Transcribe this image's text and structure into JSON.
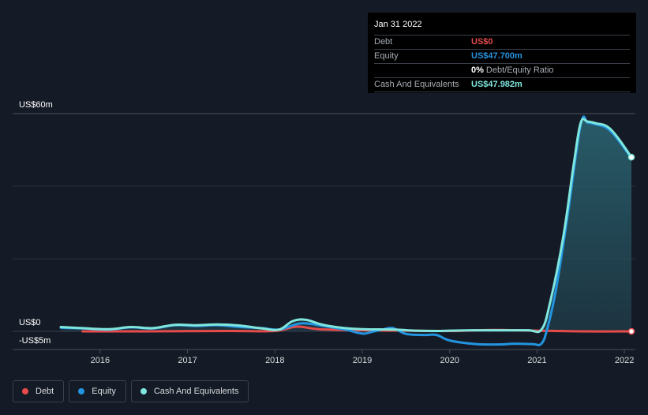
{
  "chart_data": {
    "type": "area",
    "x_ticks": [
      "2016",
      "2017",
      "2018",
      "2019",
      "2020",
      "2021",
      "2022"
    ],
    "y_labels": [
      "US$60m",
      "US$0",
      "-US$5m"
    ],
    "ylim": [
      -5,
      60
    ],
    "series": [
      {
        "name": "Debt",
        "color": "#e64b4b",
        "x": [
          2015.8,
          2016.5,
          2017.5,
          2018.0,
          2018.25,
          2018.5,
          2019.0,
          2019.5,
          2020.0,
          2020.5,
          2021.0,
          2021.5,
          2022.08
        ],
        "values": [
          0.0,
          0.0,
          0.1,
          0.1,
          1.3,
          0.6,
          0.3,
          0.2,
          0.1,
          0.4,
          0.2,
          0.0,
          0.0
        ]
      },
      {
        "name": "Equity",
        "color": "#2394df",
        "x": [
          2015.55,
          2015.8,
          2016.1,
          2016.35,
          2016.6,
          2016.85,
          2017.1,
          2017.35,
          2017.6,
          2017.85,
          2018.05,
          2018.3,
          2018.55,
          2018.8,
          2019.0,
          2019.1,
          2019.25,
          2019.35,
          2019.5,
          2019.7,
          2019.85,
          2020.0,
          2020.3,
          2020.55,
          2020.75,
          2020.95,
          2021.05,
          2021.12,
          2021.22,
          2021.35,
          2021.5,
          2021.58,
          2021.68,
          2021.8,
          2021.92,
          2022.08
        ],
        "values": [
          1.0,
          0.8,
          0.5,
          1.1,
          0.8,
          1.7,
          1.5,
          1.7,
          1.2,
          0.9,
          0.5,
          2.2,
          1.5,
          0.5,
          -0.6,
          -0.2,
          0.6,
          0.9,
          -0.7,
          -1.0,
          -1.0,
          -2.5,
          -3.5,
          -3.6,
          -3.4,
          -3.5,
          -3.4,
          1.0,
          12.0,
          32.0,
          57.0,
          57.5,
          57.0,
          56.0,
          53.0,
          47.7
        ]
      },
      {
        "name": "Cash And Equivalents",
        "color": "#7fe6de",
        "x": [
          2015.55,
          2015.8,
          2016.1,
          2016.35,
          2016.6,
          2016.85,
          2017.1,
          2017.35,
          2017.6,
          2017.85,
          2018.05,
          2018.2,
          2018.35,
          2018.55,
          2018.8,
          2019.0,
          2019.35,
          2019.6,
          2019.85,
          2020.0,
          2020.3,
          2020.6,
          2020.9,
          2021.05,
          2021.15,
          2021.3,
          2021.42,
          2021.5,
          2021.58,
          2021.68,
          2021.8,
          2021.92,
          2022.08
        ],
        "values": [
          1.2,
          0.9,
          0.6,
          1.2,
          0.9,
          1.8,
          1.7,
          1.9,
          1.6,
          0.8,
          0.5,
          2.8,
          3.2,
          1.8,
          0.9,
          0.6,
          0.5,
          0.2,
          0.1,
          0.2,
          0.3,
          0.3,
          0.3,
          0.5,
          8.0,
          26.0,
          46.0,
          57.5,
          57.8,
          57.3,
          56.5,
          53.5,
          47.982
        ]
      }
    ],
    "legend_position": "bottom-left",
    "grid": true
  },
  "tooltip": {
    "date": "Jan 31 2022",
    "rows": [
      {
        "label": "Debt",
        "value": "US$0",
        "color": "#e64b4b"
      },
      {
        "label": "Equity",
        "value": "US$47.700m",
        "color": "#2394df"
      },
      {
        "label": "",
        "value": "0%",
        "value_suffix": "Debt/Equity Ratio",
        "color": "#ffffff"
      },
      {
        "label": "Cash And Equivalents",
        "value": "US$47.982m",
        "color": "#7fe6de"
      }
    ]
  },
  "legend": [
    {
      "label": "Debt",
      "color": "#e64b4b"
    },
    {
      "label": "Equity",
      "color": "#2394df"
    },
    {
      "label": "Cash And Equivalents",
      "color": "#7fe6de"
    }
  ]
}
